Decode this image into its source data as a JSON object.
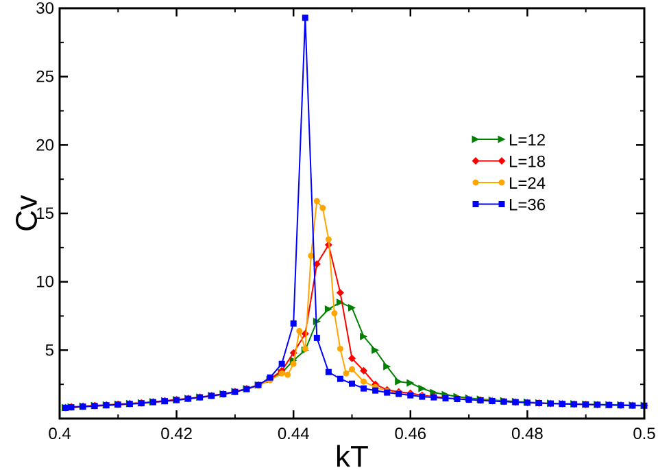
{
  "chart_data": {
    "type": "line",
    "title": "",
    "xlabel": "kT",
    "ylabel": "Cv",
    "xlim": [
      0.4,
      0.5
    ],
    "ylim": [
      0,
      30
    ],
    "xticks": [
      0.4,
      0.42,
      0.44,
      0.46,
      0.48,
      0.5
    ],
    "xtick_labels": [
      "0.4",
      "0.42",
      "0.44",
      "0.46",
      "0.48",
      "0.5"
    ],
    "yticks": [
      5,
      10,
      15,
      20,
      25,
      30
    ],
    "ytick_labels": [
      "5",
      "10",
      "15",
      "20",
      "25",
      "30"
    ],
    "grid": false,
    "legend_position": "right",
    "series": [
      {
        "name": "L=12",
        "color": "#008000",
        "marker": "triangle-right",
        "x": [
          0.401,
          0.402,
          0.404,
          0.406,
          0.408,
          0.41,
          0.412,
          0.414,
          0.416,
          0.418,
          0.42,
          0.422,
          0.424,
          0.426,
          0.428,
          0.43,
          0.432,
          0.434,
          0.436,
          0.438,
          0.44,
          0.442,
          0.444,
          0.446,
          0.448,
          0.45,
          0.452,
          0.454,
          0.456,
          0.458,
          0.46,
          0.462,
          0.464,
          0.466,
          0.468,
          0.47,
          0.472,
          0.474,
          0.476,
          0.478,
          0.48,
          0.482,
          0.484,
          0.486,
          0.488,
          0.49,
          0.492,
          0.494,
          0.496,
          0.498,
          0.5
        ],
        "y": [
          0.8,
          0.85,
          0.9,
          0.95,
          1.0,
          1.05,
          1.1,
          1.15,
          1.22,
          1.3,
          1.38,
          1.47,
          1.57,
          1.68,
          1.8,
          1.97,
          2.18,
          2.45,
          2.85,
          3.35,
          4.25,
          5.0,
          7.1,
          8.0,
          8.5,
          8.1,
          6.0,
          5.0,
          3.8,
          2.7,
          2.6,
          2.2,
          1.9,
          1.75,
          1.6,
          1.5,
          1.42,
          1.35,
          1.3,
          1.25,
          1.2,
          1.15,
          1.12,
          1.1,
          1.08,
          1.05,
          1.03,
          1.01,
          1.0,
          0.98,
          0.96
        ]
      },
      {
        "name": "L=18",
        "color": "#ff0000",
        "marker": "diamond",
        "x": [
          0.401,
          0.402,
          0.404,
          0.406,
          0.408,
          0.41,
          0.412,
          0.414,
          0.416,
          0.418,
          0.42,
          0.422,
          0.424,
          0.426,
          0.428,
          0.43,
          0.432,
          0.434,
          0.436,
          0.438,
          0.44,
          0.442,
          0.444,
          0.446,
          0.448,
          0.45,
          0.452,
          0.454,
          0.456,
          0.458,
          0.46,
          0.462,
          0.464,
          0.466,
          0.468,
          0.47,
          0.472,
          0.474,
          0.476,
          0.478,
          0.48,
          0.482,
          0.484,
          0.486,
          0.488,
          0.49,
          0.492,
          0.494,
          0.496,
          0.498,
          0.5
        ],
        "y": [
          0.8,
          0.85,
          0.9,
          0.95,
          1.0,
          1.05,
          1.1,
          1.15,
          1.22,
          1.3,
          1.38,
          1.47,
          1.57,
          1.68,
          1.8,
          1.97,
          2.18,
          2.45,
          2.9,
          3.5,
          4.8,
          6.2,
          11.3,
          12.7,
          9.2,
          4.4,
          3.5,
          2.5,
          2.1,
          1.95,
          1.85,
          1.7,
          1.6,
          1.52,
          1.45,
          1.4,
          1.35,
          1.3,
          1.25,
          1.2,
          1.16,
          1.13,
          1.1,
          1.08,
          1.05,
          1.03,
          1.01,
          1.0,
          0.98,
          0.96,
          0.95
        ]
      },
      {
        "name": "L=24",
        "color": "#ffa500",
        "marker": "circle",
        "x": [
          0.401,
          0.402,
          0.404,
          0.406,
          0.408,
          0.41,
          0.412,
          0.414,
          0.416,
          0.418,
          0.42,
          0.422,
          0.424,
          0.426,
          0.428,
          0.43,
          0.432,
          0.434,
          0.436,
          0.438,
          0.439,
          0.44,
          0.441,
          0.442,
          0.443,
          0.444,
          0.445,
          0.446,
          0.447,
          0.448,
          0.449,
          0.45,
          0.452,
          0.454,
          0.456,
          0.458,
          0.46,
          0.462,
          0.464,
          0.466,
          0.468,
          0.47,
          0.472,
          0.474,
          0.476,
          0.478,
          0.48,
          0.482,
          0.484,
          0.486,
          0.488,
          0.49,
          0.492,
          0.494,
          0.496,
          0.498,
          0.5
        ],
        "y": [
          0.75,
          0.8,
          0.85,
          0.9,
          0.95,
          1.0,
          1.05,
          1.1,
          1.18,
          1.25,
          1.33,
          1.42,
          1.52,
          1.63,
          1.75,
          1.92,
          2.15,
          2.4,
          2.8,
          3.3,
          3.2,
          4.0,
          6.4,
          5.1,
          11.9,
          15.9,
          15.4,
          13.1,
          7.7,
          5.1,
          3.3,
          3.6,
          2.7,
          2.3,
          2.0,
          1.85,
          1.75,
          1.65,
          1.55,
          1.5,
          1.45,
          1.4,
          1.35,
          1.3,
          1.25,
          1.2,
          1.16,
          1.13,
          1.1,
          1.08,
          1.05,
          1.03,
          1.01,
          1.0,
          0.98,
          0.96,
          0.95
        ]
      },
      {
        "name": "L=36",
        "color": "#0000ff",
        "marker": "square",
        "x": [
          0.401,
          0.402,
          0.404,
          0.406,
          0.408,
          0.41,
          0.412,
          0.414,
          0.416,
          0.418,
          0.42,
          0.422,
          0.424,
          0.426,
          0.428,
          0.43,
          0.432,
          0.434,
          0.436,
          0.438,
          0.44,
          0.442,
          0.444,
          0.446,
          0.448,
          0.45,
          0.452,
          0.454,
          0.456,
          0.458,
          0.46,
          0.462,
          0.464,
          0.466,
          0.468,
          0.47,
          0.472,
          0.474,
          0.476,
          0.478,
          0.48,
          0.482,
          0.484,
          0.486,
          0.488,
          0.49,
          0.492,
          0.494,
          0.496,
          0.498,
          0.5
        ],
        "y": [
          0.78,
          0.82,
          0.87,
          0.92,
          0.97,
          1.02,
          1.07,
          1.12,
          1.2,
          1.27,
          1.35,
          1.45,
          1.55,
          1.66,
          1.78,
          1.95,
          2.15,
          2.45,
          3.0,
          4.0,
          6.95,
          29.3,
          5.9,
          3.4,
          2.9,
          2.55,
          2.2,
          2.05,
          1.9,
          1.8,
          1.7,
          1.6,
          1.55,
          1.48,
          1.43,
          1.38,
          1.33,
          1.28,
          1.24,
          1.2,
          1.16,
          1.13,
          1.1,
          1.07,
          1.05,
          1.03,
          1.01,
          0.99,
          0.97,
          0.95,
          0.94
        ]
      }
    ]
  }
}
